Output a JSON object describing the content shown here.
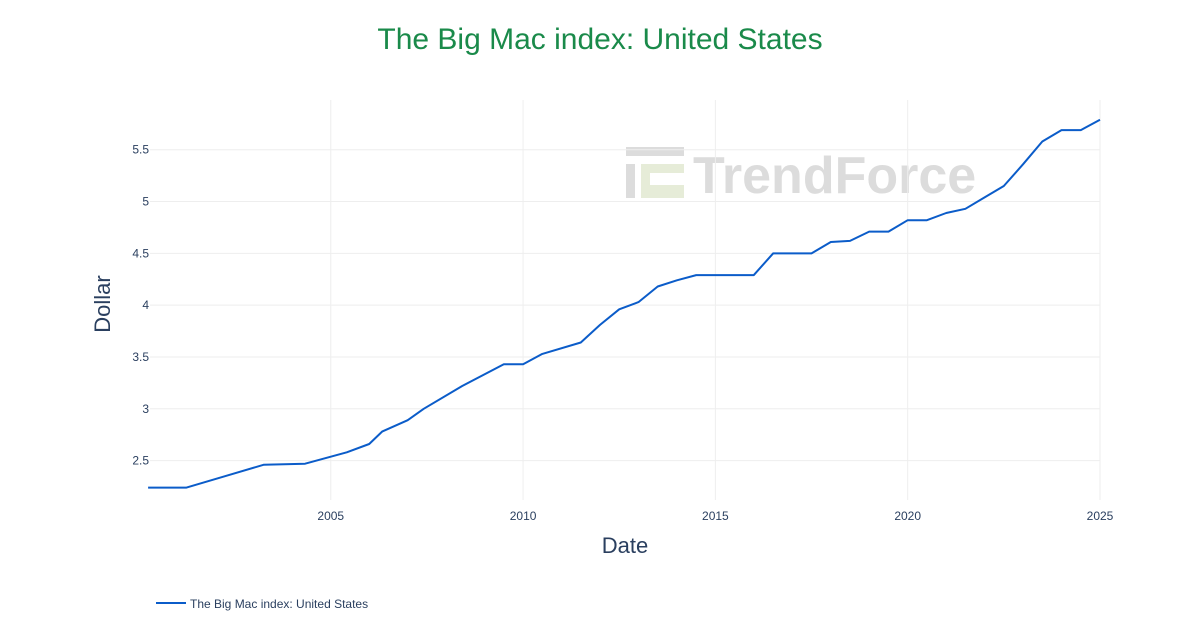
{
  "colors": {
    "title": "#1a8a4a",
    "line": "#0b5cc9",
    "grid": "#eeeeee",
    "text": "#2a3f5f",
    "watermark": "#dcdcdc"
  },
  "watermark": {
    "text": "TrendForce",
    "icon": "trendforce-logo-icon"
  },
  "chart_data": {
    "type": "line",
    "title": "The Big Mac index: United States",
    "xlabel": "Date",
    "ylabel": "Dollar",
    "xlim": [
      2000.3,
      2025.0
    ],
    "ylim": [
      2.12,
      5.98
    ],
    "grid": true,
    "legend_placement": "bottom-left",
    "x_ticks": [
      {
        "value": 2005,
        "label": "2005"
      },
      {
        "value": 2010,
        "label": "2010"
      },
      {
        "value": 2015,
        "label": "2015"
      },
      {
        "value": 2020,
        "label": "2020"
      },
      {
        "value": 2025,
        "label": "2025"
      }
    ],
    "y_ticks": [
      {
        "value": 2.5,
        "label": "2.5"
      },
      {
        "value": 3,
        "label": "3"
      },
      {
        "value": 3.5,
        "label": "3.5"
      },
      {
        "value": 4,
        "label": "4"
      },
      {
        "value": 4.5,
        "label": "4.5"
      },
      {
        "value": 5,
        "label": "5"
      },
      {
        "value": 5.5,
        "label": "5.5"
      }
    ],
    "series": [
      {
        "name": "The Big Mac index: United States",
        "x": [
          "2000-04-01",
          "2001-04-01",
          "2002-04-01",
          "2003-04-01",
          "2004-05-01",
          "2005-06-01",
          "2006-01-01",
          "2006-05-01",
          "2007-01-01",
          "2007-06-01",
          "2008-06-01",
          "2009-07-01",
          "2010-01-01",
          "2010-07-01",
          "2011-07-01",
          "2012-01-01",
          "2012-07-01",
          "2013-01-01",
          "2013-07-01",
          "2014-01-01",
          "2014-07-01",
          "2015-01-01",
          "2015-07-01",
          "2016-01-01",
          "2016-07-01",
          "2017-01-01",
          "2017-07-01",
          "2018-01-01",
          "2018-07-01",
          "2019-01-01",
          "2019-07-01",
          "2020-01-01",
          "2020-07-01",
          "2021-01-01",
          "2021-07-01",
          "2022-01-01",
          "2022-07-01",
          "2023-01-01",
          "2023-07-01",
          "2024-01-01",
          "2024-07-01",
          "2025-01-01"
        ],
        "values": [
          2.24,
          2.24,
          2.35,
          2.46,
          2.47,
          2.58,
          2.66,
          2.78,
          2.89,
          3.0,
          3.22,
          3.43,
          3.43,
          3.53,
          3.64,
          3.81,
          3.96,
          4.03,
          4.18,
          4.24,
          4.29,
          4.29,
          4.29,
          4.29,
          4.5,
          4.5,
          4.5,
          4.61,
          4.62,
          4.71,
          4.71,
          4.82,
          4.82,
          4.89,
          4.93,
          5.04,
          5.15,
          5.36,
          5.58,
          5.69,
          5.69,
          5.79
        ]
      }
    ]
  }
}
